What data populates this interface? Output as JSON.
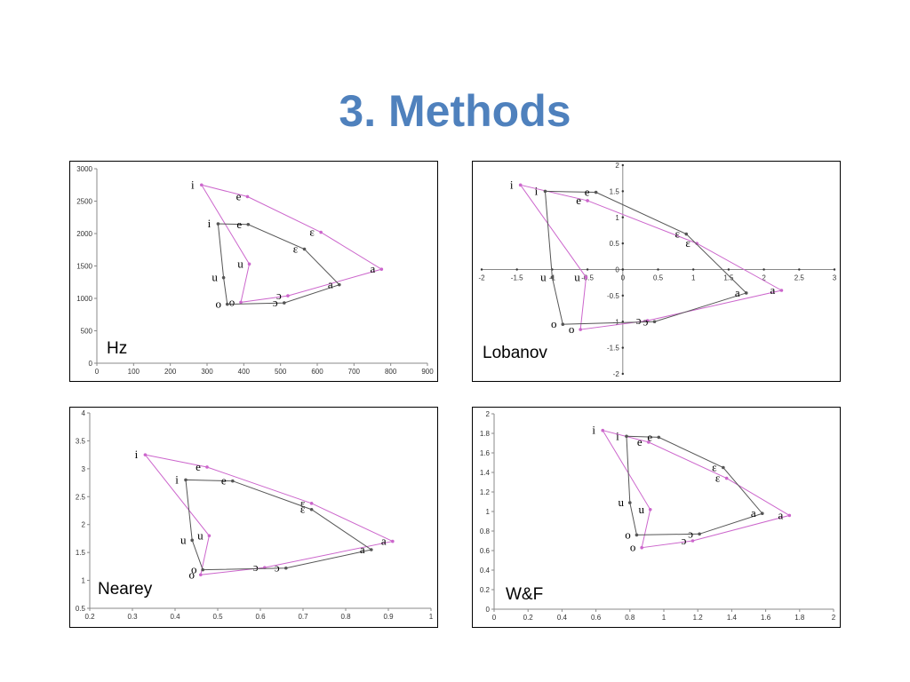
{
  "title": "3. Methods",
  "colors": {
    "title": "#4f81bd",
    "series_a": "#cc66cc",
    "series_b": "#555555"
  },
  "chart_data": [
    {
      "type": "line",
      "label": "Hz",
      "xlim": [
        0,
        900
      ],
      "ylim": [
        0,
        3000
      ],
      "x_ticks": [
        0,
        100,
        200,
        300,
        400,
        500,
        600,
        700,
        800,
        900
      ],
      "y_ticks": [
        0,
        500,
        1000,
        1500,
        2000,
        2500,
        3000
      ],
      "x_tick_labels": [
        "0",
        "100",
        "200",
        "300",
        "400",
        "500",
        "600",
        "700",
        "800",
        "900"
      ],
      "y_tick_labels": [
        "0",
        "500",
        "1000",
        "1500",
        "2000",
        "2500",
        "3000"
      ],
      "series": [
        {
          "color": "#cc66cc",
          "points": [
            {
              "v": "i",
              "x": 285,
              "y": 2750
            },
            {
              "v": "e",
              "x": 410,
              "y": 2570
            },
            {
              "v": "ɛ",
              "x": 610,
              "y": 2020
            },
            {
              "v": "a",
              "x": 775,
              "y": 1450
            },
            {
              "v": "ɔ",
              "x": 520,
              "y": 1040
            },
            {
              "v": "o",
              "x": 392,
              "y": 940
            },
            {
              "v": "u",
              "x": 415,
              "y": 1530
            },
            {
              "v": "i",
              "x": 285,
              "y": 2750
            }
          ]
        },
        {
          "color": "#555555",
          "points": [
            {
              "v": "i",
              "x": 330,
              "y": 2150
            },
            {
              "v": "e",
              "x": 412,
              "y": 2140
            },
            {
              "v": "ɛ",
              "x": 565,
              "y": 1760
            },
            {
              "v": "a",
              "x": 660,
              "y": 1210
            },
            {
              "v": "ɔ",
              "x": 510,
              "y": 930
            },
            {
              "v": "o",
              "x": 355,
              "y": 910
            },
            {
              "v": "u",
              "x": 345,
              "y": 1320
            },
            {
              "v": "i",
              "x": 330,
              "y": 2150
            }
          ]
        }
      ]
    },
    {
      "type": "line",
      "label": "Lobanov",
      "xlim": [
        -2,
        3
      ],
      "ylim": [
        -2,
        2
      ],
      "x_ticks": [
        -2,
        -1.5,
        -1,
        -0.5,
        0,
        0.5,
        1,
        1.5,
        2,
        2.5,
        3
      ],
      "y_ticks": [
        -2,
        -1.5,
        -1,
        -0.5,
        0,
        0.5,
        1,
        1.5,
        2
      ],
      "x_tick_labels": [
        "-2",
        "-1.5",
        "-1",
        "-0.5",
        "0",
        "0.5",
        "1",
        "1.5",
        "2",
        "2.5",
        "3"
      ],
      "y_tick_labels": [
        "-2",
        "-1.5",
        "-1",
        "-0.5",
        "0",
        "0.5",
        "1",
        "1.5",
        "2"
      ],
      "series": [
        {
          "color": "#cc66cc",
          "points": [
            {
              "v": "i",
              "x": -1.45,
              "y": 1.62
            },
            {
              "v": "e",
              "x": -0.5,
              "y": 1.32
            },
            {
              "v": "ɛ",
              "x": 1.05,
              "y": 0.5
            },
            {
              "v": "a",
              "x": 2.25,
              "y": -0.4
            },
            {
              "v": "ɔ",
              "x": 0.35,
              "y": -0.98
            },
            {
              "v": "o",
              "x": -0.6,
              "y": -1.15
            },
            {
              "v": "u",
              "x": -0.52,
              "y": -0.15
            },
            {
              "v": "i",
              "x": -1.45,
              "y": 1.62
            }
          ]
        },
        {
          "color": "#555555",
          "points": [
            {
              "v": "i",
              "x": -1.1,
              "y": 1.5
            },
            {
              "v": "e",
              "x": -0.38,
              "y": 1.48
            },
            {
              "v": "ɛ",
              "x": 0.9,
              "y": 0.68
            },
            {
              "v": "a",
              "x": 1.75,
              "y": -0.45
            },
            {
              "v": "ɔ",
              "x": 0.45,
              "y": -1.0
            },
            {
              "v": "o",
              "x": -0.85,
              "y": -1.05
            },
            {
              "v": "u",
              "x": -1.0,
              "y": -0.15
            },
            {
              "v": "i",
              "x": -1.1,
              "y": 1.5
            }
          ]
        }
      ]
    },
    {
      "type": "line",
      "label": "Nearey",
      "xlim": [
        0.2,
        1
      ],
      "ylim": [
        0.5,
        4
      ],
      "x_ticks": [
        0.2,
        0.3,
        0.4,
        0.5,
        0.6,
        0.7,
        0.8,
        0.9,
        1
      ],
      "y_ticks": [
        0.5,
        1,
        1.5,
        2,
        2.5,
        3,
        3.5,
        4
      ],
      "x_tick_labels": [
        "0.2",
        "0.3",
        "0.4",
        "0.5",
        "0.6",
        "0.7",
        "0.8",
        "0.9",
        "1"
      ],
      "y_tick_labels": [
        "0.5",
        "1",
        "1.5",
        "2",
        "2.5",
        "3",
        "3.5",
        "4"
      ],
      "series": [
        {
          "color": "#cc66cc",
          "points": [
            {
              "v": "i",
              "x": 0.33,
              "y": 3.25
            },
            {
              "v": "e",
              "x": 0.475,
              "y": 3.03
            },
            {
              "v": "ɛ",
              "x": 0.72,
              "y": 2.38
            },
            {
              "v": "a",
              "x": 0.91,
              "y": 1.7
            },
            {
              "v": "ɔ",
              "x": 0.61,
              "y": 1.23
            },
            {
              "v": "o",
              "x": 0.46,
              "y": 1.1
            },
            {
              "v": "u",
              "x": 0.48,
              "y": 1.8
            },
            {
              "v": "i",
              "x": 0.33,
              "y": 3.25
            }
          ]
        },
        {
          "color": "#555555",
          "points": [
            {
              "v": "i",
              "x": 0.425,
              "y": 2.8
            },
            {
              "v": "e",
              "x": 0.535,
              "y": 2.78
            },
            {
              "v": "ɛ",
              "x": 0.72,
              "y": 2.27
            },
            {
              "v": "a",
              "x": 0.86,
              "y": 1.55
            },
            {
              "v": "ɔ",
              "x": 0.66,
              "y": 1.22
            },
            {
              "v": "o",
              "x": 0.465,
              "y": 1.19
            },
            {
              "v": "u",
              "x": 0.44,
              "y": 1.72
            },
            {
              "v": "i",
              "x": 0.425,
              "y": 2.8
            }
          ]
        }
      ]
    },
    {
      "type": "line",
      "label": "W&F",
      "xlim": [
        0,
        2
      ],
      "ylim": [
        0,
        2
      ],
      "x_ticks": [
        0,
        0.2,
        0.4,
        0.6,
        0.8,
        1,
        1.2,
        1.4,
        1.6,
        1.8,
        2
      ],
      "y_ticks": [
        0,
        0.2,
        0.4,
        0.6,
        0.8,
        1,
        1.2,
        1.4,
        1.6,
        1.8,
        2
      ],
      "x_tick_labels": [
        "0",
        "0.2",
        "0.4",
        "0.6",
        "0.8",
        "1",
        "1.2",
        "1.4",
        "1.6",
        "1.8",
        "2"
      ],
      "y_tick_labels": [
        "0",
        "0.2",
        "0.4",
        "0.6",
        "0.8",
        "1",
        "1.2",
        "1.4",
        "1.6",
        "1.8",
        "2"
      ],
      "series": [
        {
          "color": "#cc66cc",
          "points": [
            {
              "v": "i",
              "x": 0.64,
              "y": 1.83
            },
            {
              "v": "e",
              "x": 0.91,
              "y": 1.71
            },
            {
              "v": "ɛ",
              "x": 1.37,
              "y": 1.34
            },
            {
              "v": "a",
              "x": 1.74,
              "y": 0.96
            },
            {
              "v": "ɔ",
              "x": 1.17,
              "y": 0.7
            },
            {
              "v": "o",
              "x": 0.87,
              "y": 0.63
            },
            {
              "v": "u",
              "x": 0.92,
              "y": 1.02
            },
            {
              "v": "i",
              "x": 0.64,
              "y": 1.83
            }
          ]
        },
        {
          "color": "#555555",
          "points": [
            {
              "v": "i",
              "x": 0.78,
              "y": 1.77
            },
            {
              "v": "e",
              "x": 0.97,
              "y": 1.76
            },
            {
              "v": "ɛ",
              "x": 1.35,
              "y": 1.45
            },
            {
              "v": "a",
              "x": 1.58,
              "y": 0.98
            },
            {
              "v": "ɔ",
              "x": 1.21,
              "y": 0.77
            },
            {
              "v": "o",
              "x": 0.84,
              "y": 0.76
            },
            {
              "v": "u",
              "x": 0.8,
              "y": 1.09
            },
            {
              "v": "i",
              "x": 0.78,
              "y": 1.77
            }
          ]
        }
      ]
    }
  ]
}
